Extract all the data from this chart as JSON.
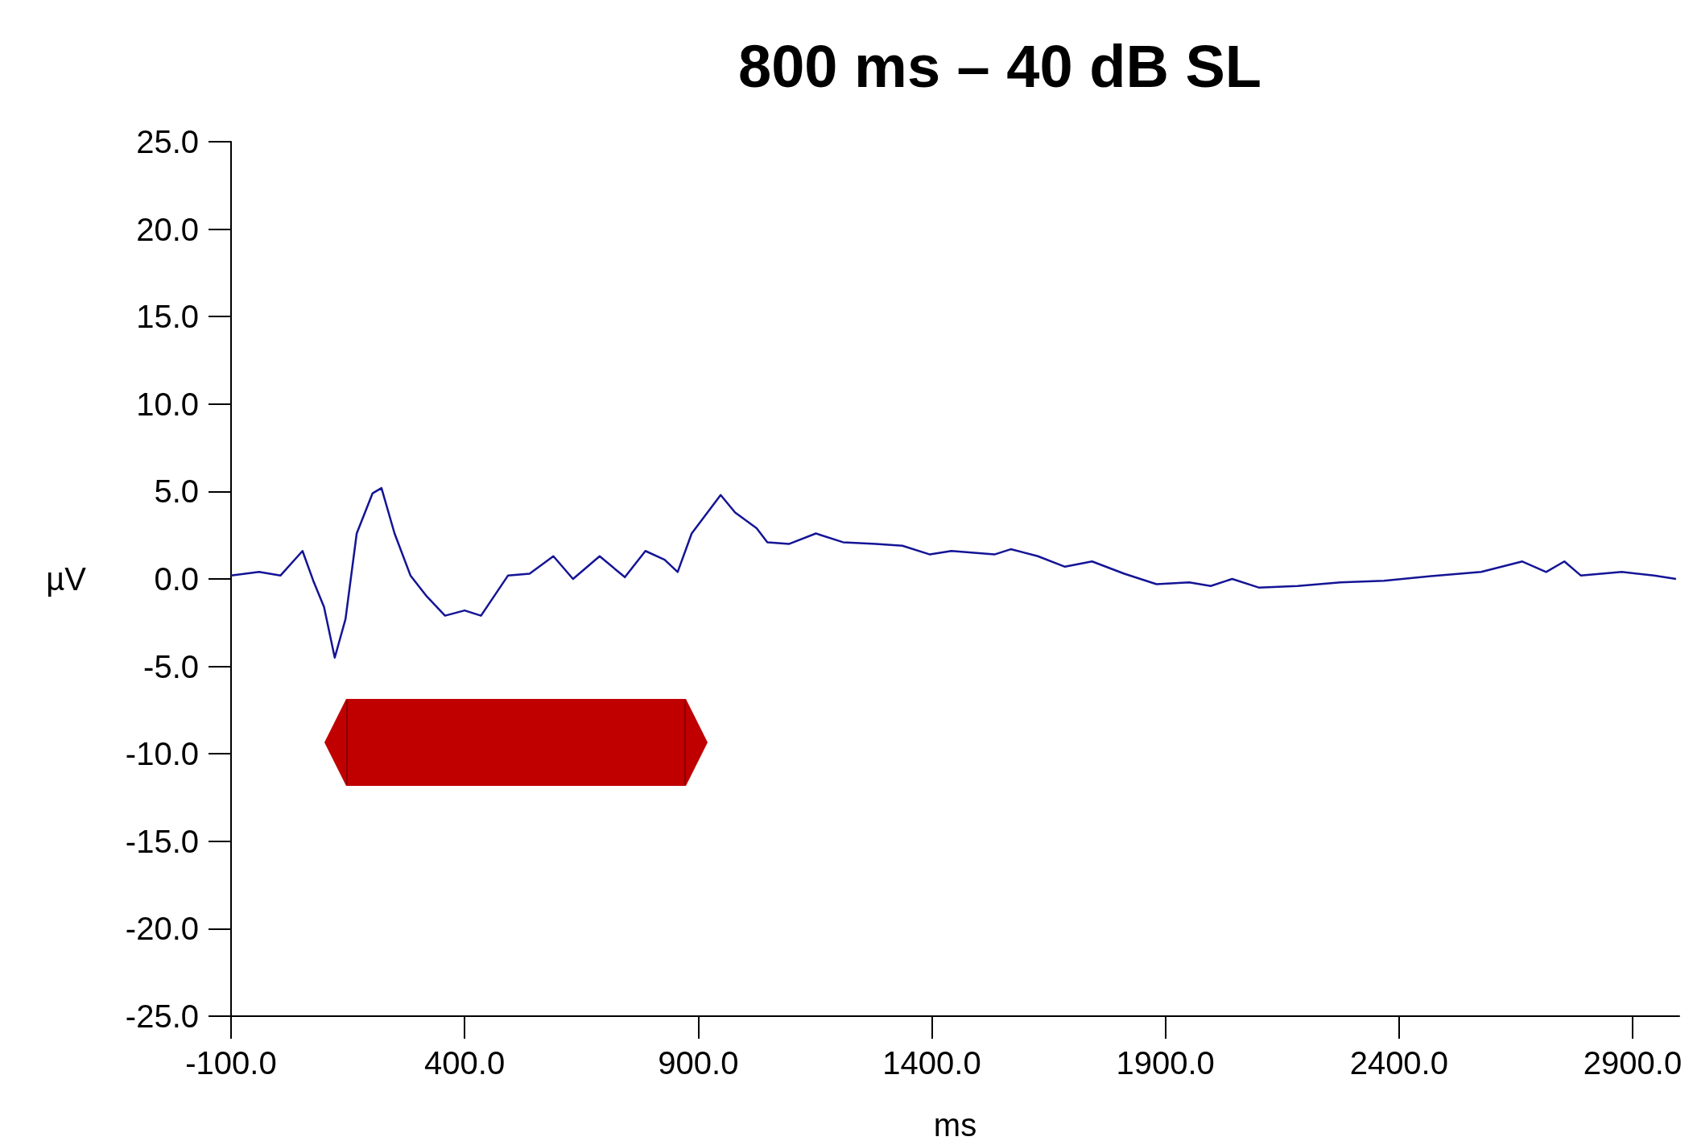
{
  "chart_data": {
    "type": "line",
    "title": "800 ms – 40 dB SL",
    "xlabel": "ms",
    "ylabel": "µV",
    "x": [
      -100,
      -40,
      6,
      53,
      76,
      99,
      122,
      145,
      169,
      203,
      222,
      250,
      284,
      319,
      358,
      400,
      435,
      493,
      539,
      590,
      632,
      689,
      743,
      787,
      828,
      856,
      886,
      948,
      979,
      1025,
      1048,
      1094,
      1152,
      1210,
      1280,
      1337,
      1396,
      1442,
      1534,
      1569,
      1627,
      1685,
      1743,
      1812,
      1881,
      1951,
      1997,
      2043,
      2101,
      2183,
      2275,
      2368,
      2484,
      2576,
      2664,
      2715,
      2754,
      2789,
      2877,
      2946,
      2993
    ],
    "series": [
      {
        "color": "#141496",
        "values": [
          0.2,
          0.4,
          0.2,
          1.6,
          -0.1,
          -1.6,
          -4.5,
          -2.3,
          2.6,
          4.9,
          5.2,
          2.6,
          0.2,
          -1.0,
          -2.1,
          -1.8,
          -2.1,
          0.2,
          0.3,
          1.3,
          0,
          1.3,
          0.1,
          1.6,
          1.1,
          0.4,
          2.6,
          4.8,
          3.8,
          2.9,
          2.1,
          2.0,
          2.6,
          2.1,
          2.0,
          1.9,
          1.4,
          1.6,
          1.4,
          1.7,
          1.3,
          0.7,
          1.0,
          0.3,
          -0.3,
          -0.2,
          -0.4,
          0,
          -0.5,
          -0.4,
          -0.2,
          -0.1,
          0.2,
          0.4,
          1.0,
          0.4,
          1.0,
          0.2,
          0.4,
          0.2,
          0
        ]
      }
    ],
    "xlim": [
      -100,
      3000
    ],
    "xticks": [
      {
        "value": -100,
        "label": "-100.0"
      },
      {
        "value": 400,
        "label": "400.0"
      },
      {
        "value": 900,
        "label": "900.0"
      },
      {
        "value": 1400,
        "label": "1400.0"
      },
      {
        "value": 1900,
        "label": "1900.0"
      },
      {
        "value": 2400,
        "label": "2400.0"
      },
      {
        "value": 2900,
        "label": "2900.0"
      }
    ],
    "ylim": [
      -25,
      25
    ],
    "yticks": [
      {
        "value": -25,
        "label": "-25.0"
      },
      {
        "value": -20,
        "label": "-20.0"
      },
      {
        "value": -15,
        "label": "-15.0"
      },
      {
        "value": -10,
        "label": "-10.0"
      },
      {
        "value": -5,
        "label": "-5.0"
      },
      {
        "value": 0,
        "label": "0.0"
      },
      {
        "value": 5,
        "label": "5.0"
      },
      {
        "value": 10,
        "label": "10.0"
      },
      {
        "value": 15,
        "label": "15.0"
      },
      {
        "value": 20,
        "label": "20.0"
      },
      {
        "value": 25,
        "label": "25.0"
      }
    ],
    "marker": "none",
    "line_style": "solid"
  }
}
